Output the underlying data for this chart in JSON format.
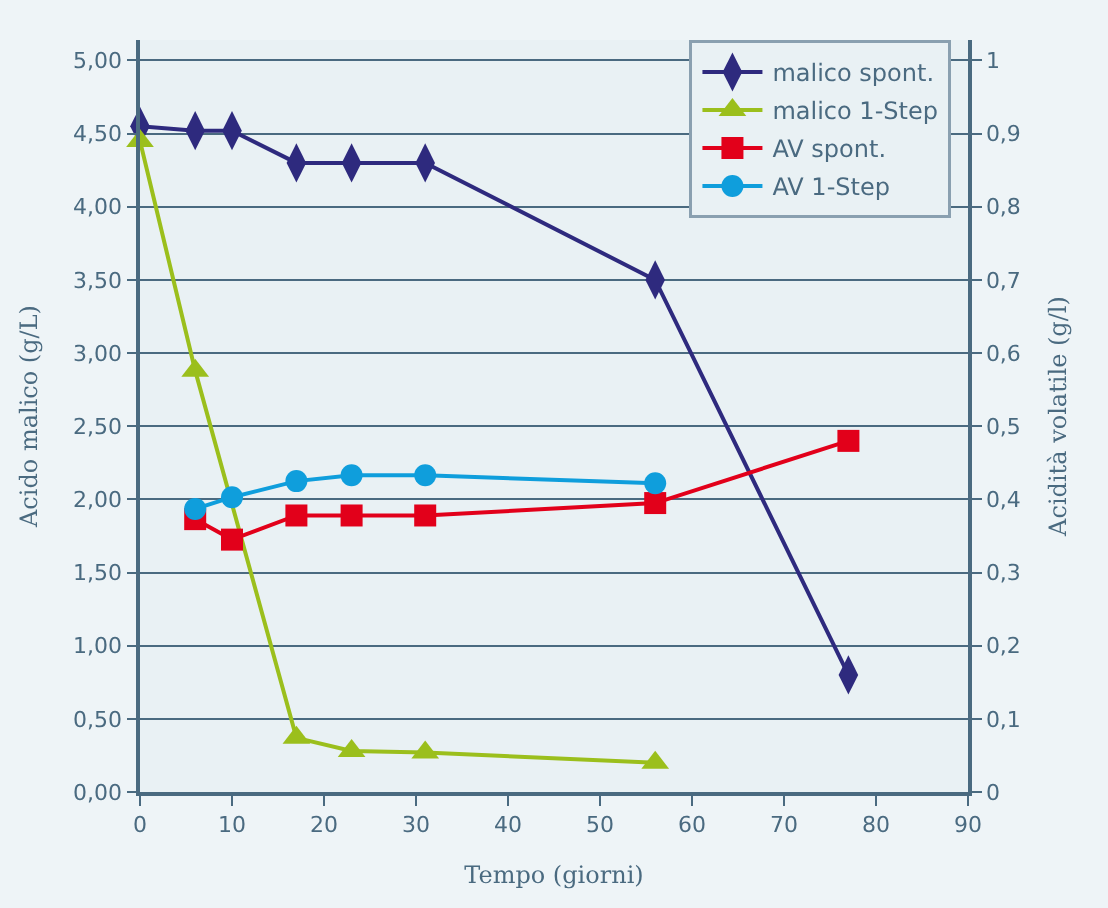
{
  "chart_data": {
    "type": "line",
    "xlabel": "Tempo (giorni)",
    "ylabel": "Acido malico (g/L)",
    "y2label": "Acidità volatile (g/l)",
    "xlim": [
      0,
      90
    ],
    "xticks": [
      0,
      10,
      20,
      30,
      40,
      50,
      60,
      70,
      80,
      90
    ],
    "ylim": [
      0,
      5.14
    ],
    "yticks": [
      {
        "value": 0,
        "label": "0,00"
      },
      {
        "value": 0.5,
        "label": "0,50"
      },
      {
        "value": 1,
        "label": "1,00"
      },
      {
        "value": 1.5,
        "label": "1,50"
      },
      {
        "value": 2,
        "label": "2,00"
      },
      {
        "value": 2.5,
        "label": "2,50"
      },
      {
        "value": 3,
        "label": "3,00"
      },
      {
        "value": 3.5,
        "label": "3,50"
      },
      {
        "value": 4,
        "label": "4,00"
      },
      {
        "value": 4.5,
        "label": "4,50"
      },
      {
        "value": 5,
        "label": "5,00"
      }
    ],
    "y2lim": [
      0,
      1.028
    ],
    "y2ticks": [
      0,
      {
        "value": 0.1,
        "label": "0,1"
      },
      {
        "value": 0.2,
        "label": "0,2"
      },
      {
        "value": 0.3,
        "label": "0,3"
      },
      {
        "value": 0.4,
        "label": "0,4"
      },
      {
        "value": 0.5,
        "label": "0,5"
      },
      {
        "value": 0.6,
        "label": "0,6"
      },
      {
        "value": 0.7,
        "label": "0,7"
      },
      {
        "value": 0.8,
        "label": "0,8"
      },
      {
        "value": 0.9,
        "label": "0,9"
      },
      1
    ],
    "grid": "y",
    "legend": "top right",
    "series": [
      {
        "name": "malico spont.",
        "color": "#2e2a7e",
        "marker": "diamond",
        "x": [
          0,
          6,
          10,
          17,
          23,
          31,
          56,
          77
        ],
        "values": [
          4.55,
          4.52,
          4.52,
          4.3,
          4.3,
          4.3,
          3.5,
          0.8
        ]
      },
      {
        "name": "malico 1-Step",
        "color": "#9bbf1c",
        "marker": "triangle",
        "x": [
          0,
          6,
          17,
          23,
          31,
          56
        ],
        "values": [
          4.45,
          2.88,
          0.37,
          0.28,
          0.27,
          0.2
        ]
      },
      {
        "name": "AV spont.",
        "color": "#e2001a",
        "marker": "square",
        "axis": "y2",
        "x": [
          6,
          10,
          17,
          23,
          31,
          56,
          77
        ],
        "values": [
          0.373,
          0.345,
          0.378,
          0.378,
          0.378,
          0.395,
          0.48
        ]
      },
      {
        "name": "AV 1-Step",
        "color": "#0f9edc",
        "marker": "circle",
        "axis": "y2",
        "x": [
          6,
          10,
          17,
          23,
          31,
          56
        ],
        "values": [
          0.387,
          0.403,
          0.425,
          0.433,
          0.433,
          0.422
        ]
      }
    ]
  }
}
